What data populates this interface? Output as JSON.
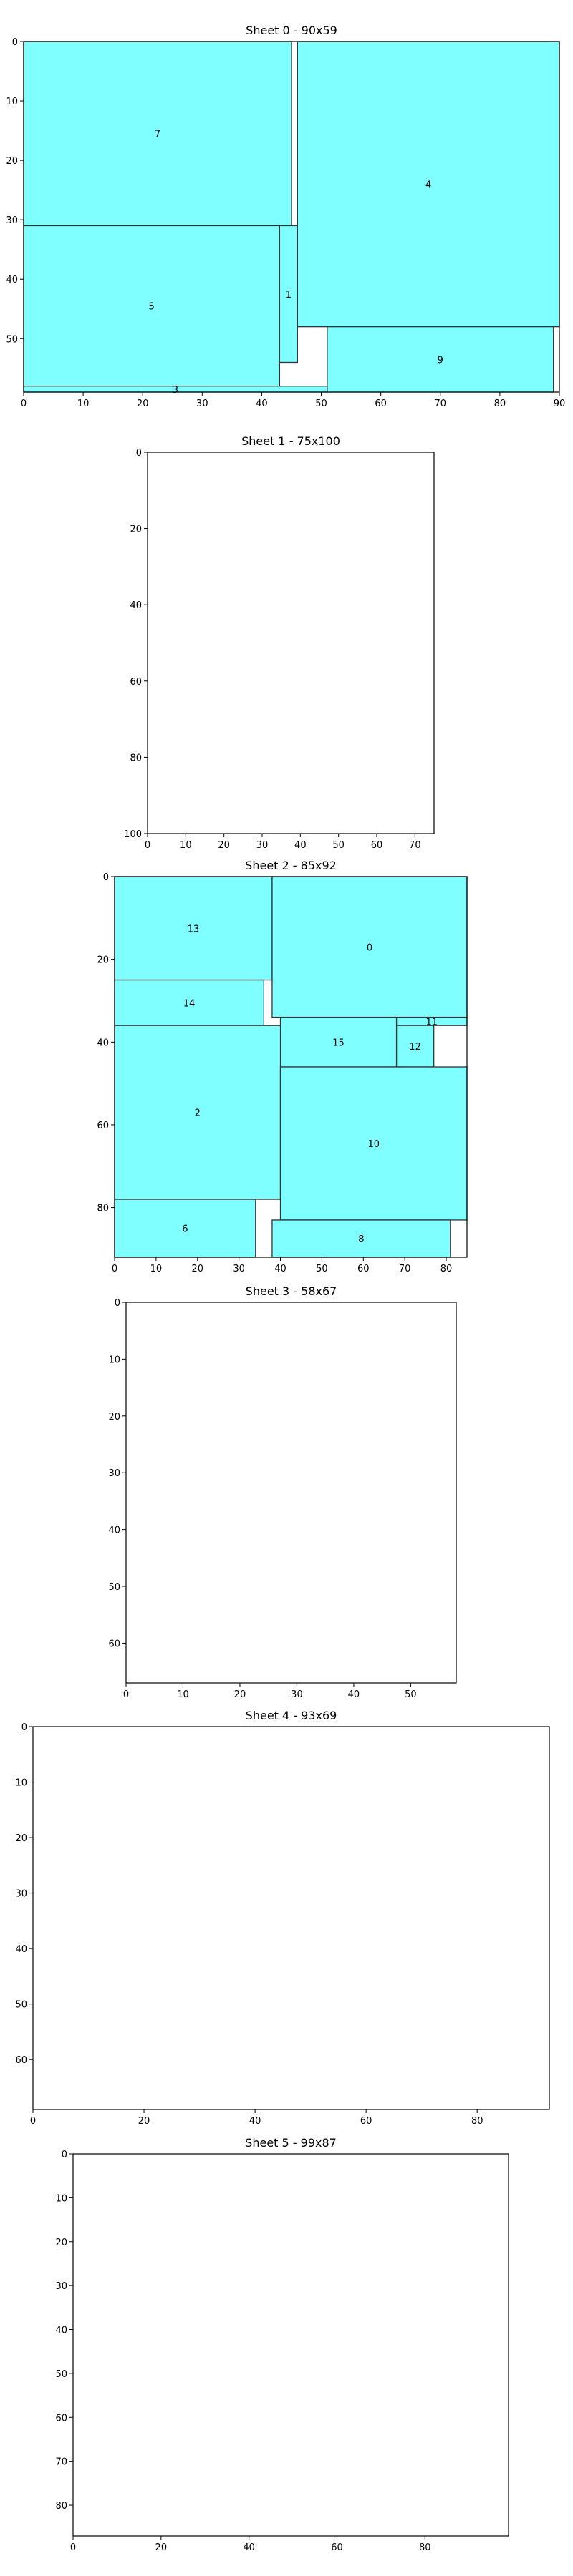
{
  "chart_data": [
    {
      "type": "rectangle-packing",
      "title": "Sheet 0 - 90x59",
      "sheet": {
        "width": 90,
        "height": 59
      },
      "xlim": [
        0,
        90
      ],
      "ylim": [
        59,
        0
      ],
      "xticks": [
        0,
        10,
        20,
        30,
        40,
        50,
        60,
        70,
        80,
        90
      ],
      "yticks": [
        0,
        10,
        20,
        30,
        40,
        50
      ],
      "pieces": [
        {
          "label": "7",
          "x": 0,
          "y": 0,
          "w": 45,
          "h": 31
        },
        {
          "label": "4",
          "x": 46,
          "y": 0,
          "w": 44,
          "h": 48
        },
        {
          "label": "5",
          "x": 0,
          "y": 31,
          "w": 43,
          "h": 27
        },
        {
          "label": "1",
          "x": 43,
          "y": 31,
          "w": 3,
          "h": 23
        },
        {
          "label": "9",
          "x": 51,
          "y": 48,
          "w": 38,
          "h": 11
        },
        {
          "label": "3",
          "x": 0,
          "y": 58,
          "w": 51,
          "h": 1
        }
      ]
    },
    {
      "type": "rectangle-packing",
      "title": "Sheet 1 - 75x100",
      "sheet": {
        "width": 75,
        "height": 100
      },
      "xlim": [
        0,
        75
      ],
      "ylim": [
        100,
        0
      ],
      "xticks": [
        0,
        10,
        20,
        30,
        40,
        50,
        60,
        70
      ],
      "yticks": [
        0,
        20,
        40,
        60,
        80,
        100
      ],
      "pieces": []
    },
    {
      "type": "rectangle-packing",
      "title": "Sheet 2 - 85x92",
      "sheet": {
        "width": 85,
        "height": 92
      },
      "xlim": [
        0,
        85
      ],
      "ylim": [
        92,
        0
      ],
      "xticks": [
        0,
        10,
        20,
        30,
        40,
        50,
        60,
        70,
        80
      ],
      "yticks": [
        0,
        20,
        40,
        60,
        80
      ],
      "pieces": [
        {
          "label": "13",
          "x": 0,
          "y": 0,
          "w": 38,
          "h": 25
        },
        {
          "label": "0",
          "x": 38,
          "y": 0,
          "w": 47,
          "h": 34
        },
        {
          "label": "14",
          "x": 0,
          "y": 25,
          "w": 36,
          "h": 11
        },
        {
          "label": "15",
          "x": 40,
          "y": 34,
          "w": 28,
          "h": 12
        },
        {
          "label": "11",
          "x": 68,
          "y": 34,
          "w": 17,
          "h": 2
        },
        {
          "label": "12",
          "x": 68,
          "y": 36,
          "w": 9,
          "h": 10
        },
        {
          "label": "2",
          "x": 0,
          "y": 36,
          "w": 40,
          "h": 42
        },
        {
          "label": "10",
          "x": 40,
          "y": 46,
          "w": 45,
          "h": 37
        },
        {
          "label": "6",
          "x": 0,
          "y": 78,
          "w": 34,
          "h": 14
        },
        {
          "label": "8",
          "x": 38,
          "y": 83,
          "w": 43,
          "h": 9
        }
      ]
    },
    {
      "type": "rectangle-packing",
      "title": "Sheet 3 - 58x67",
      "sheet": {
        "width": 58,
        "height": 67
      },
      "xlim": [
        0,
        58
      ],
      "ylim": [
        67,
        0
      ],
      "xticks": [
        0,
        10,
        20,
        30,
        40,
        50
      ],
      "yticks": [
        0,
        10,
        20,
        30,
        40,
        50,
        60
      ],
      "pieces": []
    },
    {
      "type": "rectangle-packing",
      "title": "Sheet 4 - 93x69",
      "sheet": {
        "width": 93,
        "height": 69
      },
      "xlim": [
        0,
        93
      ],
      "ylim": [
        69,
        0
      ],
      "xticks": [
        0,
        20,
        40,
        60,
        80
      ],
      "yticks": [
        0,
        10,
        20,
        30,
        40,
        50,
        60
      ],
      "pieces": []
    },
    {
      "type": "rectangle-packing",
      "title": "Sheet 5 - 99x87",
      "sheet": {
        "width": 99,
        "height": 87
      },
      "xlim": [
        0,
        99
      ],
      "ylim": [
        87,
        0
      ],
      "xticks": [
        0,
        20,
        40,
        60,
        80
      ],
      "yticks": [
        0,
        10,
        20,
        30,
        40,
        50,
        60,
        70,
        80
      ],
      "pieces": []
    }
  ],
  "colors": {
    "piece_fill": "#7fffff",
    "piece_edge": "#333333",
    "axes": "#000000"
  }
}
